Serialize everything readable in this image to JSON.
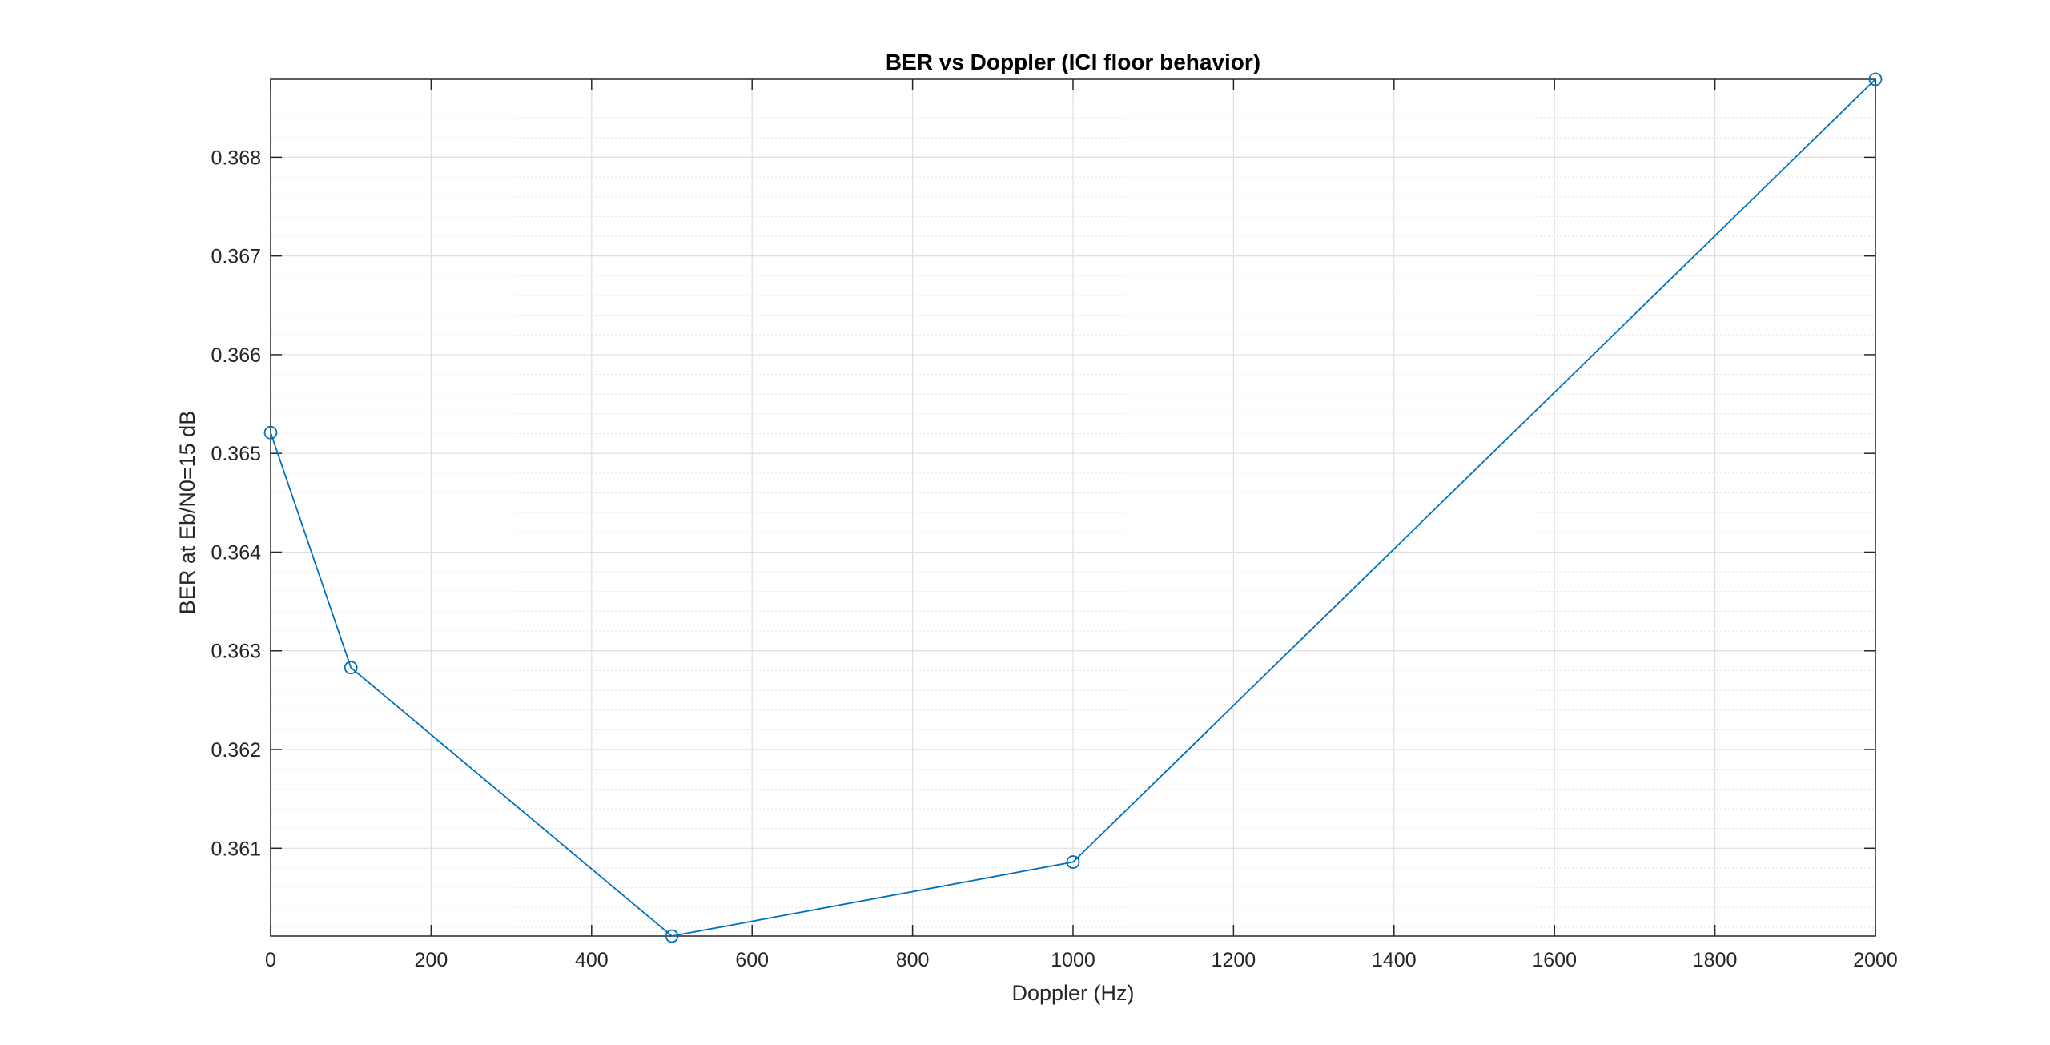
{
  "chart_data": {
    "type": "line",
    "title": "BER vs Doppler (ICI floor behavior)",
    "xlabel": "Doppler (Hz)",
    "ylabel": "BER at Eb/N0=15 dB",
    "xlim": [
      0,
      2000
    ],
    "ylim": [
      0.36011,
      0.36879
    ],
    "x_ticks": [
      0,
      200,
      400,
      600,
      800,
      1000,
      1200,
      1400,
      1600,
      1800,
      2000
    ],
    "x_tick_labels": [
      "0",
      "200",
      "400",
      "600",
      "800",
      "1000",
      "1200",
      "1400",
      "1600",
      "1800",
      "2000"
    ],
    "y_ticks": [
      0.361,
      0.362,
      0.363,
      0.364,
      0.365,
      0.366,
      0.367,
      0.368
    ],
    "y_tick_labels": [
      "0.361",
      "0.362",
      "0.363",
      "0.364",
      "0.365",
      "0.366",
      "0.367",
      "0.368"
    ],
    "grid": true,
    "minor_grid": true,
    "legend": "none",
    "series": [
      {
        "x": [
          0,
          100,
          500,
          1000,
          2000
        ],
        "y": [
          0.36521,
          0.36283,
          0.36011,
          0.36086,
          0.36879
        ],
        "marker": "circle",
        "color": "#0072BD"
      }
    ]
  }
}
